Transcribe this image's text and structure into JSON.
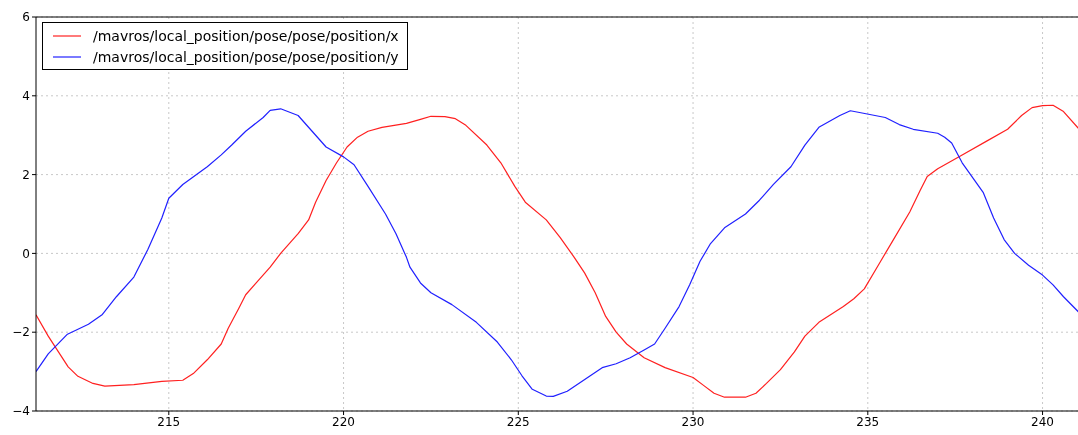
{
  "chart_data": {
    "type": "line",
    "xlim": [
      211.2,
      241.1
    ],
    "xticks": [
      215,
      220,
      225,
      230,
      235,
      240
    ],
    "ylim": [
      -4,
      6
    ],
    "yticks": [
      {
        "value": -4,
        "label": "−4"
      },
      {
        "value": -2,
        "label": "−2"
      },
      0,
      2,
      4,
      6
    ],
    "grid": true,
    "legend": "top left",
    "marker": "none",
    "line_style": "solid",
    "series": [
      {
        "name": "/mavros/local_position/pose/pose/position/x",
        "color": "#ff2020",
        "x": [
          211.2,
          211.55,
          212.12,
          212.4,
          212.83,
          213.17,
          214.0,
          214.8,
          215.4,
          215.7,
          216.1,
          216.5,
          216.7,
          217.0,
          217.2,
          217.5,
          217.9,
          218.2,
          218.7,
          219.0,
          219.2,
          219.5,
          219.8,
          220.1,
          220.4,
          220.7,
          221.1,
          221.8,
          222.2,
          222.5,
          222.9,
          223.2,
          223.5,
          224.1,
          224.5,
          224.9,
          225.2,
          225.8,
          226.2,
          226.6,
          226.9,
          227.2,
          227.5,
          227.8,
          228.1,
          228.6,
          229.2,
          230.0,
          230.3,
          230.6,
          230.9,
          231.5,
          231.8,
          232.1,
          232.5,
          232.9,
          233.2,
          233.6,
          234.3,
          234.6,
          234.9,
          235.3,
          235.7,
          236.2,
          236.5,
          236.7,
          237.0,
          237.7,
          238.4,
          239.0,
          239.4,
          239.7,
          240.0,
          240.3,
          240.6,
          241.1
        ],
        "values": [
          -1.56,
          -2.1,
          -2.88,
          -3.12,
          -3.3,
          -3.37,
          -3.33,
          -3.25,
          -3.22,
          -3.05,
          -2.7,
          -2.3,
          -1.9,
          -1.4,
          -1.05,
          -0.75,
          -0.35,
          0,
          0.5,
          0.85,
          1.3,
          1.85,
          2.3,
          2.7,
          2.95,
          3.1,
          3.2,
          3.3,
          3.4,
          3.48,
          3.47,
          3.42,
          3.25,
          2.75,
          2.3,
          1.7,
          1.3,
          0.85,
          0.4,
          -0.1,
          -0.5,
          -1.0,
          -1.6,
          -2.0,
          -2.3,
          -2.65,
          -2.9,
          -3.15,
          -3.35,
          -3.55,
          -3.65,
          -3.65,
          -3.55,
          -3.3,
          -2.95,
          -2.5,
          -2.1,
          -1.75,
          -1.35,
          -1.15,
          -0.9,
          -0.3,
          0.3,
          1.05,
          1.6,
          1.95,
          2.15,
          2.5,
          2.85,
          3.15,
          3.5,
          3.7,
          3.75,
          3.76,
          3.6,
          3.1
        ]
      },
      {
        "name": "/mavros/local_position/pose/pose/position/y",
        "color": "#2020ff",
        "x": [
          211.2,
          211.55,
          212.1,
          212.7,
          213.1,
          213.5,
          214.0,
          214.4,
          214.8,
          215.0,
          215.4,
          216.1,
          216.5,
          216.8,
          217.2,
          217.7,
          217.9,
          218.2,
          218.7,
          219.1,
          219.5,
          220.0,
          220.3,
          220.7,
          221.2,
          221.5,
          221.8,
          221.9,
          222.2,
          222.5,
          223.1,
          223.8,
          224.4,
          224.8,
          225.1,
          225.4,
          225.8,
          226.0,
          226.4,
          226.9,
          227.4,
          227.8,
          228.2,
          228.6,
          228.9,
          229.2,
          229.6,
          229.9,
          230.2,
          230.5,
          230.9,
          231.5,
          231.9,
          232.3,
          232.8,
          233.2,
          233.6,
          234.2,
          234.5,
          234.8,
          235.5,
          235.9,
          236.3,
          237.0,
          237.2,
          237.4,
          237.7,
          238.3,
          238.6,
          238.9,
          239.2,
          239.6,
          240.0,
          240.3,
          240.6,
          241.1
        ],
        "values": [
          -3.0,
          -2.55,
          -2.05,
          -1.8,
          -1.55,
          -1.1,
          -0.6,
          0.1,
          0.9,
          1.4,
          1.75,
          2.2,
          2.5,
          2.75,
          3.1,
          3.45,
          3.63,
          3.67,
          3.5,
          3.1,
          2.7,
          2.45,
          2.25,
          1.7,
          1.0,
          0.5,
          -0.1,
          -0.35,
          -0.75,
          -1.0,
          -1.3,
          -1.75,
          -2.25,
          -2.7,
          -3.1,
          -3.45,
          -3.62,
          -3.63,
          -3.5,
          -3.2,
          -2.9,
          -2.8,
          -2.65,
          -2.45,
          -2.3,
          -1.9,
          -1.35,
          -0.8,
          -0.2,
          0.25,
          0.65,
          1.0,
          1.35,
          1.75,
          2.2,
          2.75,
          3.2,
          3.5,
          3.62,
          3.57,
          3.45,
          3.27,
          3.15,
          3.05,
          2.95,
          2.8,
          2.3,
          1.55,
          0.9,
          0.35,
          0.0,
          -0.3,
          -0.55,
          -0.8,
          -1.1,
          -1.55
        ]
      }
    ]
  }
}
